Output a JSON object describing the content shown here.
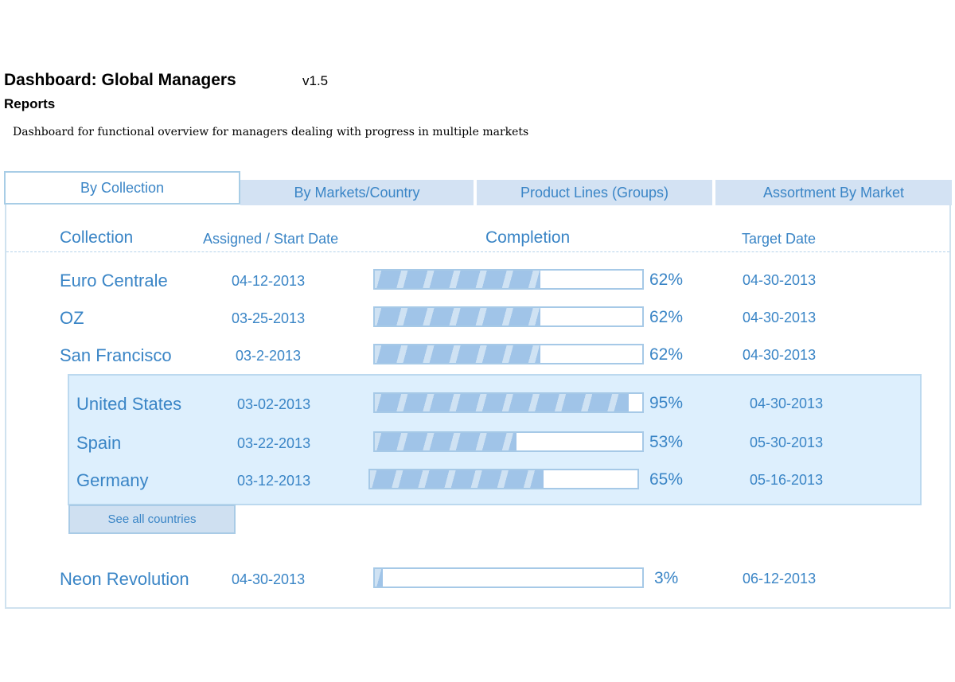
{
  "header": {
    "title": "Dashboard: Global Managers",
    "version": "v1.5",
    "subtitle": "Reports",
    "description": "Dashboard for functional overview for managers dealing with progress in multiple markets"
  },
  "tabs": [
    {
      "label": "By Collection",
      "active": true
    },
    {
      "label": "By Markets/Country",
      "active": false
    },
    {
      "label": "Product Lines (Groups)",
      "active": false
    },
    {
      "label": "Assortment By Market",
      "active": false
    }
  ],
  "table": {
    "headers": {
      "collection": "Collection",
      "start_date": "Assigned / Start Date",
      "completion": "Completion",
      "target_date": "Target Date"
    },
    "rows": [
      {
        "name": "Euro Centrale",
        "start": "04-12-2013",
        "completion": 62,
        "completion_label": "62%",
        "target": "04-30-2013"
      },
      {
        "name": "OZ",
        "start": "03-25-2013",
        "completion": 62,
        "completion_label": "62%",
        "target": "04-30-2013"
      },
      {
        "name": "San Francisco",
        "start": "03-2-2013",
        "completion": 62,
        "completion_label": "62%",
        "target": "04-30-2013"
      }
    ],
    "sub_rows": [
      {
        "name": "United States",
        "start": "03-02-2013",
        "completion": 95,
        "completion_label": "95%",
        "target": "04-30-2013"
      },
      {
        "name": "Spain",
        "start": "03-22-2013",
        "completion": 53,
        "completion_label": "53%",
        "target": "05-30-2013"
      },
      {
        "name": "Germany",
        "start": "03-12-2013",
        "completion": 65,
        "completion_label": "65%",
        "target": "05-16-2013"
      }
    ],
    "see_all_label": "See all countries",
    "last_row": {
      "name": "Neon Revolution",
      "start": "04-30-2013",
      "completion": 3,
      "completion_label": "3%",
      "target": "06-12-2013"
    }
  },
  "colors": {
    "accent_text": "#3a85c6",
    "tab_bg": "#d3e2f3",
    "bar_fill": "#a0c4e8",
    "sub_panel_bg": "#ddeffd"
  }
}
